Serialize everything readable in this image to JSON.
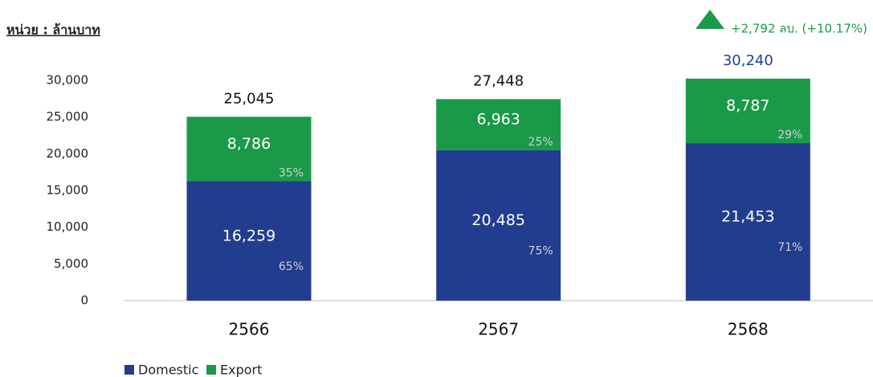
{
  "chart_data": {
    "type": "stacked_bar",
    "unit_label": "หน่วย : ล้านบาท",
    "annotation": "+2,792 ลบ. (+10.17%)",
    "annotation_color": "#1a9a48",
    "categories": [
      "2566",
      "2567",
      "2568"
    ],
    "series": [
      {
        "name": "Domestic",
        "color": "#223d8f",
        "values": [
          16259,
          20485,
          21453
        ],
        "value_labels": [
          "16,259",
          "20,485",
          "21,453"
        ],
        "percent_labels": [
          "65%",
          "75%",
          "71%"
        ]
      },
      {
        "name": "Export",
        "color": "#1a9a48",
        "values": [
          8786,
          6963,
          8787
        ],
        "value_labels": [
          "8,786",
          "6,963",
          "8,787"
        ],
        "percent_labels": [
          "35%",
          "25%",
          "29%"
        ]
      }
    ],
    "totals": [
      25045,
      27448,
      30240
    ],
    "total_labels": [
      "25,045",
      "27,448",
      "30,240"
    ],
    "total_colors": [
      "#111111",
      "#111111",
      "#1f3f9f"
    ],
    "ylim": [
      0,
      30000
    ],
    "yticks": [
      0,
      {
        "value": 5000,
        "label": "5,000"
      },
      {
        "value": 10000,
        "label": "10,000"
      },
      {
        "value": 15000,
        "label": "15,000"
      },
      {
        "value": 20000,
        "label": "20,000"
      },
      {
        "value": 25000,
        "label": "25,000"
      },
      {
        "value": 30000,
        "label": "30,000"
      }
    ],
    "grid": false
  }
}
